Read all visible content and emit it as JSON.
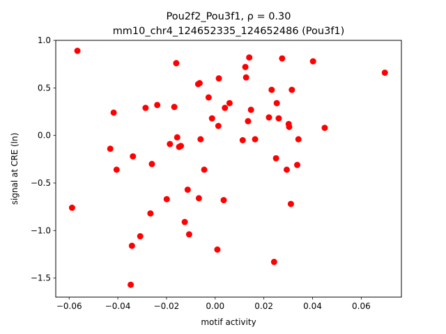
{
  "chart_data": {
    "type": "scatter",
    "title": "Pou2f2_Pou3f1, ρ = 0.30",
    "subtitle": "mm10_chr4_124652335_124652486 (Pou3f1)",
    "xlabel": "motif activity",
    "ylabel": "signal at CRE (ln)",
    "xlim": [
      -0.0655,
      0.0765
    ],
    "ylim": [
      -1.7,
      1.0
    ],
    "xticks": [
      -0.06,
      -0.04,
      -0.02,
      0.0,
      0.02,
      0.04,
      0.06
    ],
    "xtick_labels": [
      "−0.06",
      "−0.04",
      "−0.02",
      "0.00",
      "0.02",
      "0.04",
      "0.06"
    ],
    "yticks": [
      -1.5,
      -1.0,
      -0.5,
      0.0,
      0.5,
      1.0
    ],
    "ytick_labels": [
      "−1.5",
      "−1.0",
      "−0.5",
      "0.0",
      "0.5",
      "1.0"
    ],
    "grid": false,
    "marker_color": "#ff0000",
    "points": [
      {
        "x": -0.0566,
        "y": 0.89
      },
      {
        "x": -0.0588,
        "y": -0.76
      },
      {
        "x": -0.0417,
        "y": 0.24
      },
      {
        "x": -0.0431,
        "y": -0.14
      },
      {
        "x": -0.0405,
        "y": -0.36
      },
      {
        "x": -0.0338,
        "y": -0.22
      },
      {
        "x": -0.0342,
        "y": -1.16
      },
      {
        "x": -0.0347,
        "y": -1.57
      },
      {
        "x": -0.0308,
        "y": -1.06
      },
      {
        "x": -0.0286,
        "y": 0.29
      },
      {
        "x": -0.026,
        "y": -0.3
      },
      {
        "x": -0.0266,
        "y": -0.82
      },
      {
        "x": -0.0238,
        "y": 0.32
      },
      {
        "x": -0.0199,
        "y": -0.67
      },
      {
        "x": -0.0186,
        "y": -0.09
      },
      {
        "x": -0.0168,
        "y": 0.3
      },
      {
        "x": -0.0156,
        "y": -0.02
      },
      {
        "x": -0.0148,
        "y": -0.12
      },
      {
        "x": -0.0141,
        "y": -0.11
      },
      {
        "x": -0.016,
        "y": 0.76
      },
      {
        "x": -0.0125,
        "y": -0.91
      },
      {
        "x": -0.0113,
        "y": -0.57
      },
      {
        "x": -0.0107,
        "y": -1.04
      },
      {
        "x": -0.007,
        "y": 0.54
      },
      {
        "x": -0.0064,
        "y": 0.55
      },
      {
        "x": -0.006,
        "y": -0.04
      },
      {
        "x": -0.0067,
        "y": -0.66
      },
      {
        "x": -0.0045,
        "y": -0.36
      },
      {
        "x": -0.0027,
        "y": 0.4
      },
      {
        "x": -0.0013,
        "y": 0.18
      },
      {
        "x": 0.0013,
        "y": 0.1
      },
      {
        "x": 0.0015,
        "y": 0.6
      },
      {
        "x": 0.0009,
        "y": -1.2
      },
      {
        "x": 0.0035,
        "y": -0.68
      },
      {
        "x": 0.004,
        "y": 0.29
      },
      {
        "x": 0.0059,
        "y": 0.34
      },
      {
        "x": 0.0113,
        "y": -0.05
      },
      {
        "x": 0.0124,
        "y": 0.72
      },
      {
        "x": 0.0127,
        "y": 0.61
      },
      {
        "x": 0.0135,
        "y": 0.15
      },
      {
        "x": 0.014,
        "y": 0.82
      },
      {
        "x": 0.0147,
        "y": 0.27
      },
      {
        "x": 0.0164,
        "y": -0.04
      },
      {
        "x": 0.0221,
        "y": 0.19
      },
      {
        "x": 0.0232,
        "y": 0.48
      },
      {
        "x": 0.0242,
        "y": -1.33
      },
      {
        "x": 0.025,
        "y": -0.24
      },
      {
        "x": 0.0253,
        "y": 0.34
      },
      {
        "x": 0.0261,
        "y": 0.18
      },
      {
        "x": 0.0275,
        "y": 0.81
      },
      {
        "x": 0.0294,
        "y": -0.36
      },
      {
        "x": 0.0302,
        "y": 0.12
      },
      {
        "x": 0.0304,
        "y": 0.09
      },
      {
        "x": 0.0311,
        "y": -0.72
      },
      {
        "x": 0.0315,
        "y": 0.48
      },
      {
        "x": 0.0337,
        "y": -0.31
      },
      {
        "x": 0.0342,
        "y": -0.04
      },
      {
        "x": 0.0402,
        "y": 0.78
      },
      {
        "x": 0.045,
        "y": 0.08
      },
      {
        "x": 0.0697,
        "y": 0.66
      }
    ]
  }
}
